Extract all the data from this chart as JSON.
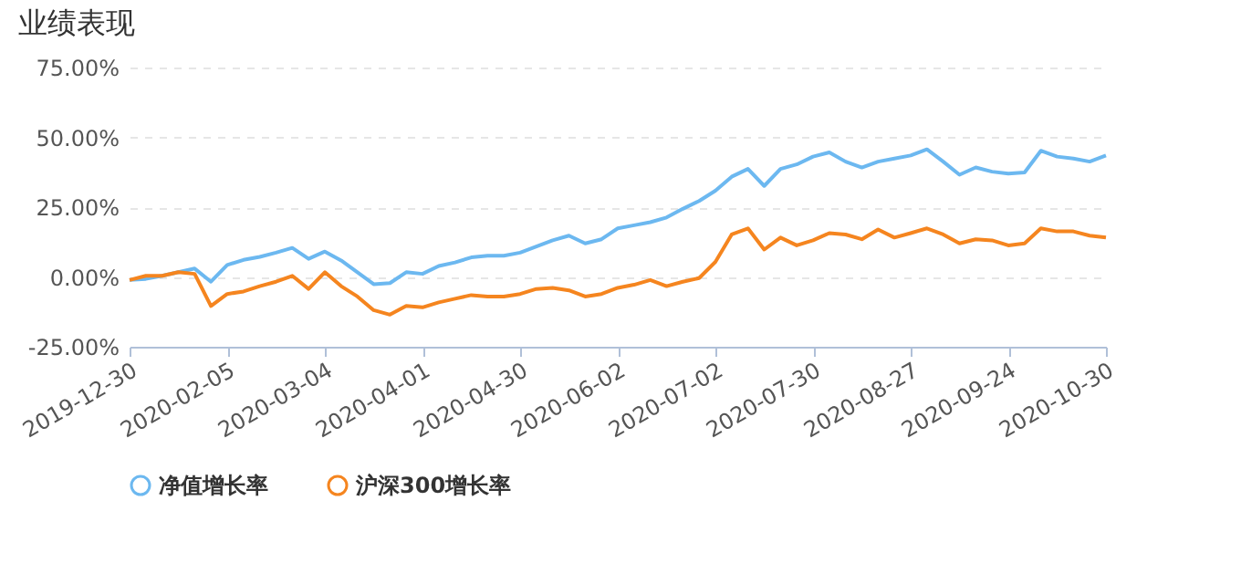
{
  "chart_data": {
    "type": "line",
    "title": "业绩表现",
    "categories": [
      "2019-12-30",
      null,
      null,
      null,
      null,
      null,
      "2020-02-05",
      null,
      null,
      null,
      null,
      null,
      "2020-03-04",
      null,
      null,
      null,
      null,
      null,
      "2020-04-01",
      null,
      null,
      null,
      null,
      null,
      "2020-04-30",
      null,
      null,
      null,
      null,
      null,
      "2020-06-02",
      null,
      null,
      null,
      null,
      null,
      "2020-07-02",
      null,
      null,
      null,
      null,
      null,
      "2020-07-30",
      null,
      null,
      null,
      null,
      null,
      "2020-08-27",
      null,
      null,
      null,
      null,
      null,
      "2020-09-24",
      null,
      null,
      null,
      null,
      null,
      "2020-10-30"
    ],
    "series": [
      {
        "name": "净值增长率",
        "color": "#6cb8f0",
        "values": [
          -1.1,
          -0.7,
          0.4,
          1.7,
          3.0,
          -1.7,
          4.3,
          6.1,
          7.2,
          8.7,
          10.4,
          6.5,
          9.1,
          5.9,
          1.7,
          -2.6,
          -2.2,
          1.7,
          1.1,
          3.9,
          5.2,
          7.0,
          7.6,
          7.6,
          8.7,
          10.9,
          13.1,
          14.8,
          12.0,
          13.5,
          17.4,
          18.5,
          19.6,
          21.3,
          24.4,
          27.2,
          30.9,
          35.9,
          38.7,
          32.6,
          38.7,
          40.3,
          43.1,
          44.6,
          41.3,
          39.2,
          41.3,
          42.4,
          43.5,
          45.7,
          41.3,
          36.6,
          39.2,
          37.7,
          37.0,
          37.4,
          45.2,
          43.1,
          42.4,
          41.3,
          43.5
        ]
      },
      {
        "name": "沪深300增长率",
        "color": "#f5851f",
        "values": [
          -1.1,
          0.4,
          0.4,
          1.7,
          1.1,
          -10.4,
          -6.1,
          -5.2,
          -3.3,
          -1.7,
          0.4,
          -4.3,
          1.7,
          -3.3,
          -7.0,
          -11.9,
          -13.5,
          -10.4,
          -10.9,
          -9.1,
          -7.8,
          -6.5,
          -7.0,
          -7.0,
          -6.1,
          -4.3,
          -3.9,
          -4.8,
          -7.0,
          -6.1,
          -3.9,
          -2.8,
          -1.1,
          -3.3,
          -1.7,
          -0.4,
          5.4,
          15.2,
          17.4,
          9.8,
          14.1,
          11.3,
          13.1,
          15.7,
          15.2,
          13.5,
          17.0,
          14.1,
          15.7,
          17.4,
          15.2,
          12.0,
          13.5,
          13.1,
          11.3,
          12.0,
          17.4,
          16.3,
          16.3,
          14.8,
          14.1
        ]
      }
    ],
    "ylim": [
      -25,
      75
    ],
    "yticks": [
      {
        "value": -25,
        "label": "-25.00%"
      },
      {
        "value": 0,
        "label": "0.00%"
      },
      {
        "value": 25,
        "label": "25.00%"
      },
      {
        "value": 50,
        "label": "50.00%"
      },
      {
        "value": 75,
        "label": "75.00%"
      }
    ],
    "grid": "y",
    "legend": "bottom",
    "marker": "none",
    "line_style": "solid"
  }
}
